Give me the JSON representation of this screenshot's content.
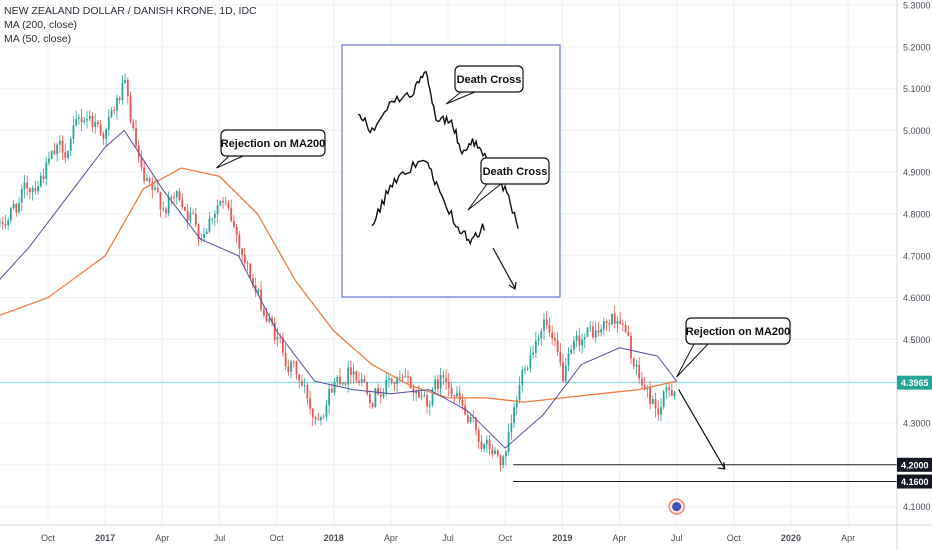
{
  "header": {
    "title": "NEW ZEALAND DOLLAR / DANISH KRONE, 1D, IDC",
    "indicator_1": "MA (200, close)",
    "indicator_2": "MA (50, close)"
  },
  "colors": {
    "up": "#26a69a",
    "down": "#ef5350",
    "ma200": "#f57c3f",
    "ma50": "#5b4ba5",
    "hline": "#80deea",
    "price_badge": "#26a69a",
    "level_badge": "#131722",
    "inset_border": "#4d5bd6",
    "grid": "#eef0f3"
  },
  "chart_data": {
    "type": "candlestick",
    "title": "NEW ZEALAND DOLLAR / DANISH KRONE, 1D, IDC",
    "ylim": [
      4.07,
      5.32
    ],
    "y_ticks": [
      "5.3000",
      "5.2000",
      "5.1000",
      "5.0000",
      "4.9000",
      "4.8000",
      "4.7000",
      "4.6000",
      "4.5000",
      "4.4000",
      "4.3000",
      "4.2000",
      "4.1000"
    ],
    "y_tick_values": [
      5.3,
      5.2,
      5.1,
      5.0,
      4.9,
      4.8,
      4.7,
      4.6,
      4.5,
      4.4,
      4.3,
      4.2,
      4.1
    ],
    "x_ticks": [
      "Oct",
      "2017",
      "Apr",
      "Jul",
      "Oct",
      "2018",
      "Apr",
      "Jul",
      "Oct",
      "2019",
      "Apr",
      "Jul",
      "Oct",
      "2020",
      "Apr"
    ],
    "x_tick_dates": [
      "2016-10",
      "2017-01",
      "2017-04",
      "2017-07",
      "2017-10",
      "2018-01",
      "2018-04",
      "2018-07",
      "2018-10",
      "2019-01",
      "2019-04",
      "2019-07",
      "2019-10",
      "2020-01",
      "2020-04"
    ],
    "price_path_dates": [
      "2016-07",
      "2016-08",
      "2016-09",
      "2016-10",
      "2016-11",
      "2016-12",
      "2017-01",
      "2017-02",
      "2017-03",
      "2017-04",
      "2017-05",
      "2017-06",
      "2017-07",
      "2017-08",
      "2017-09",
      "2017-10",
      "2017-11",
      "2017-12",
      "2018-01",
      "2018-02",
      "2018-03",
      "2018-04",
      "2018-05",
      "2018-06",
      "2018-07",
      "2018-08",
      "2018-09",
      "2018-10",
      "2018-11",
      "2018-12",
      "2019-01",
      "2019-02",
      "2019-03",
      "2019-04",
      "2019-05",
      "2019-06",
      "2019-07"
    ],
    "price_path": [
      4.72,
      4.8,
      4.86,
      4.92,
      4.96,
      5.04,
      5.0,
      5.1,
      4.86,
      4.82,
      4.84,
      4.76,
      4.84,
      4.74,
      4.6,
      4.5,
      4.42,
      4.32,
      4.4,
      4.44,
      4.38,
      4.4,
      4.38,
      4.36,
      4.42,
      4.3,
      4.24,
      4.2,
      4.44,
      4.56,
      4.4,
      4.5,
      4.52,
      4.56,
      4.4,
      4.33,
      4.4
    ],
    "ma200_dates": [
      "2016-07",
      "2016-10",
      "2017-01",
      "2017-03",
      "2017-05",
      "2017-07",
      "2017-09",
      "2017-11",
      "2018-01",
      "2018-03",
      "2018-05",
      "2018-07",
      "2018-09",
      "2018-11",
      "2019-01",
      "2019-03",
      "2019-05",
      "2019-07"
    ],
    "ma200": [
      4.55,
      4.6,
      4.7,
      4.86,
      4.91,
      4.89,
      4.8,
      4.64,
      4.52,
      4.44,
      4.39,
      4.36,
      4.36,
      4.35,
      4.36,
      4.37,
      4.38,
      4.4
    ],
    "ma50_dates": [
      "2016-07",
      "2016-09",
      "2016-11",
      "2017-01",
      "2017-02",
      "2017-04",
      "2017-06",
      "2017-08",
      "2017-10",
      "2017-12",
      "2018-02",
      "2018-04",
      "2018-06",
      "2018-08",
      "2018-10",
      "2018-12",
      "2019-02",
      "2019-04",
      "2019-06",
      "2019-07"
    ],
    "ma50": [
      4.62,
      4.72,
      4.84,
      4.96,
      5.0,
      4.86,
      4.74,
      4.7,
      4.52,
      4.4,
      4.38,
      4.37,
      4.38,
      4.33,
      4.24,
      4.32,
      4.44,
      4.48,
      4.46,
      4.4
    ],
    "current_price": 4.3965,
    "current_price_label": "4.3965",
    "levels": [
      {
        "value": 4.2,
        "label": "4.2000",
        "start_date": "2018-10"
      },
      {
        "value": 4.16,
        "label": "4.1600",
        "start_date": "2018-10"
      }
    ],
    "annotations": [
      {
        "text": "Rejection on MA200",
        "date": "2017-07",
        "price": 4.91
      },
      {
        "text": "Rejection on MA200",
        "date": "2019-07",
        "price": 4.41
      }
    ],
    "projection_arrow": {
      "from_date": "2019-07",
      "from_price": 4.38,
      "to_date": "2019-09",
      "to_price": 4.19
    },
    "inset": {
      "labels": [
        "Death Cross",
        "Death Cross"
      ]
    },
    "event_marker": {
      "date": "2019-07",
      "price": 4.1
    }
  }
}
